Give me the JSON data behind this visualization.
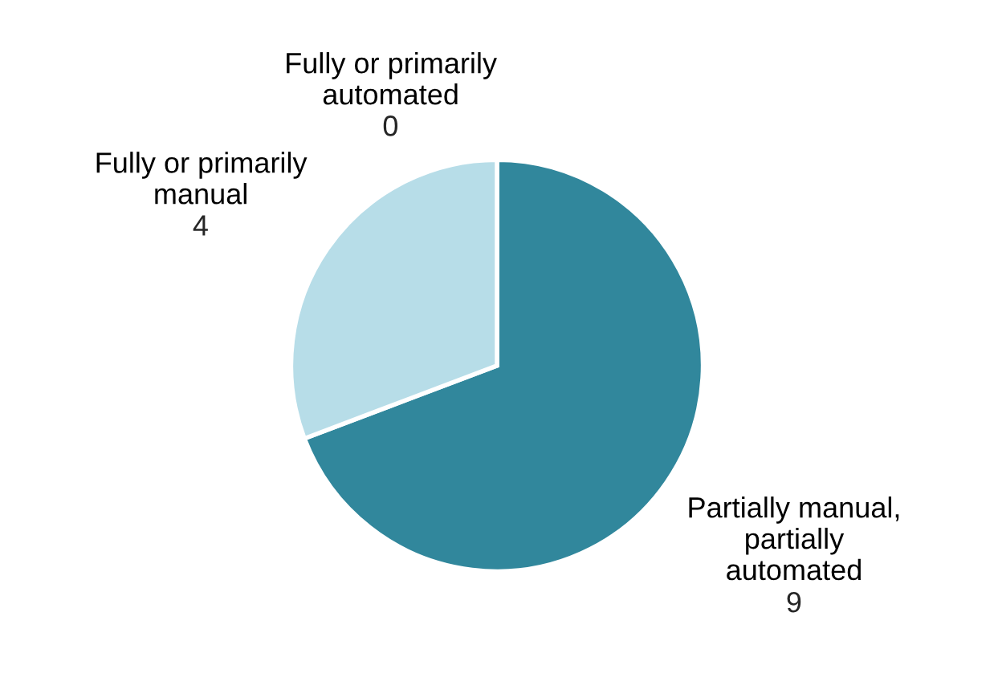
{
  "chart_data": {
    "type": "pie",
    "categories": [
      "Fully or primarily\nautomated",
      "Partially manual,\npartially\nautomated",
      "Fully or primarily\nmanual"
    ],
    "values": [
      0,
      9,
      4
    ],
    "colors": [
      "#31879c",
      "#31879c",
      "#b7dde8"
    ],
    "value_labels": [
      "0",
      "9",
      "4"
    ]
  }
}
